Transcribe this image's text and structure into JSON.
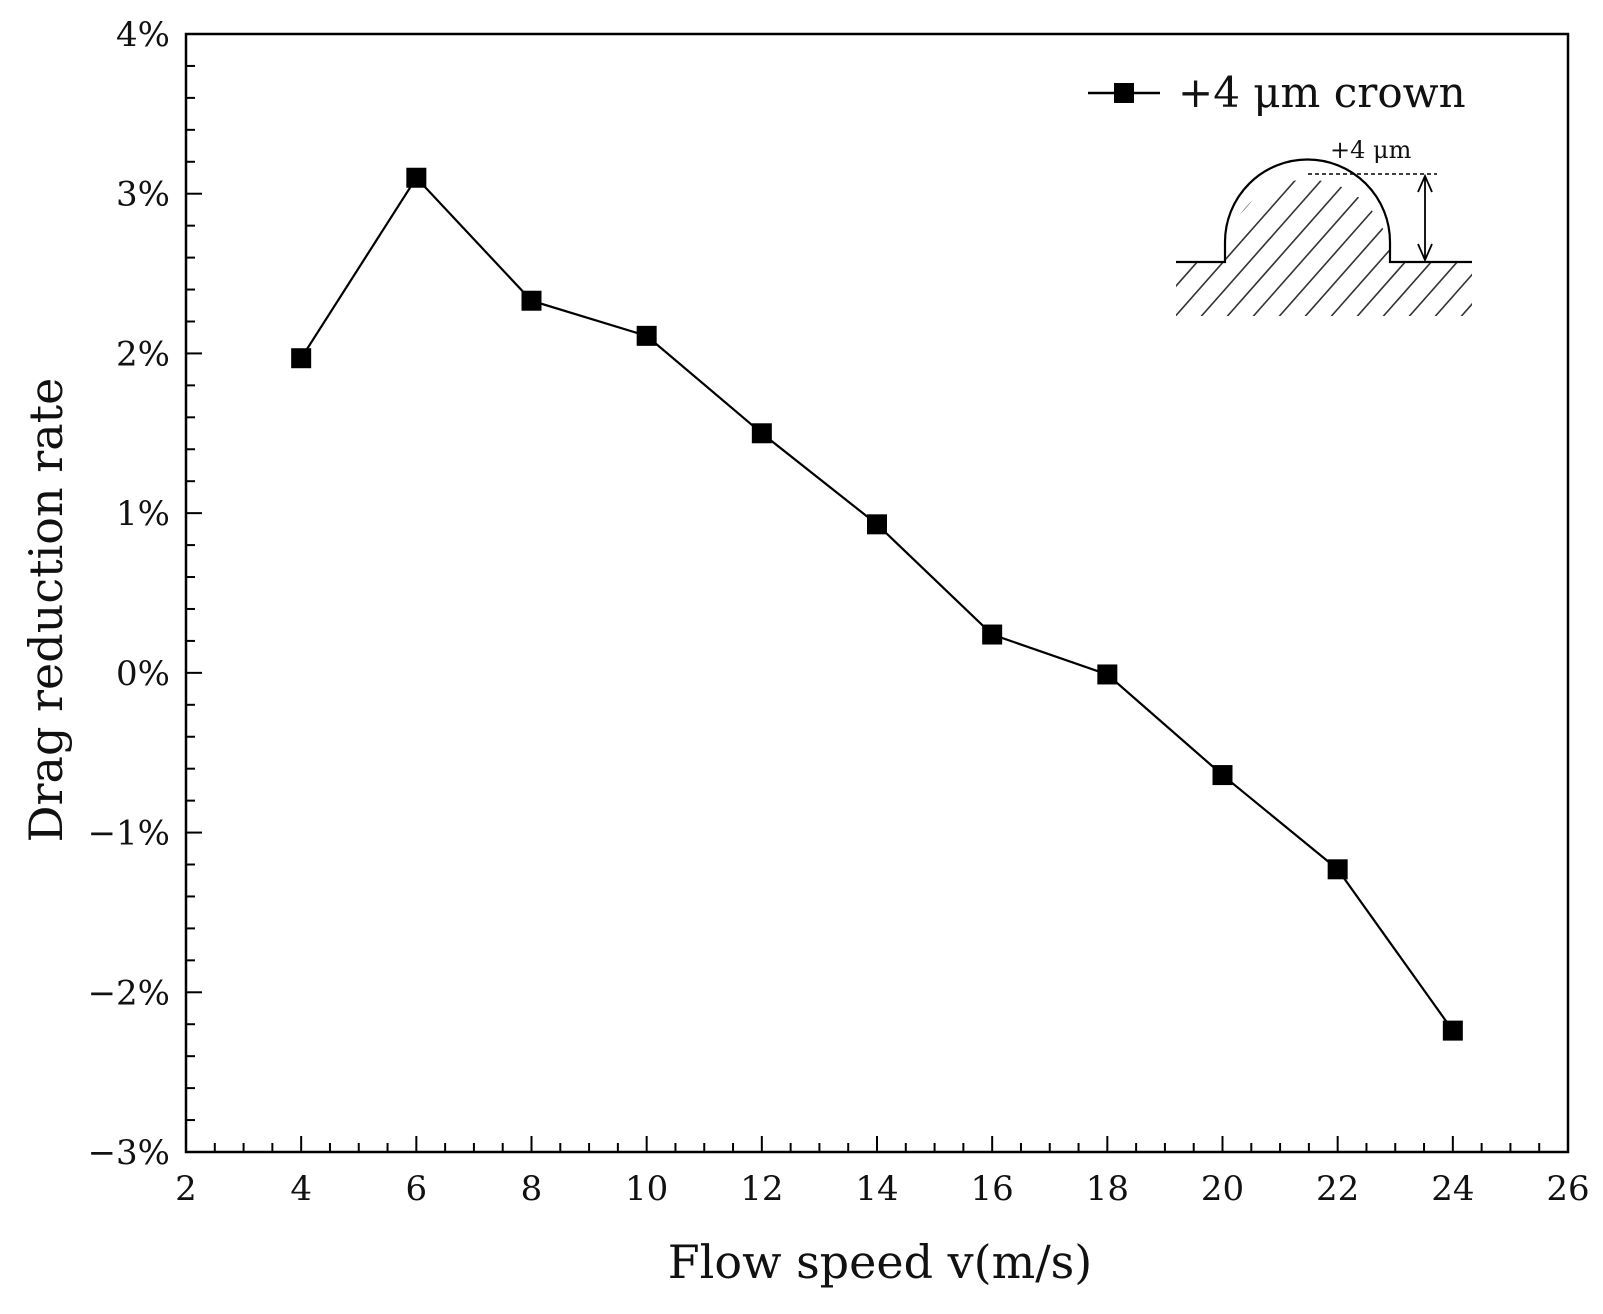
{
  "chart_data": {
    "type": "line",
    "title": "",
    "xlabel": "Flow speed v(m/s)",
    "ylabel": "Drag reduction rate",
    "xlim": [
      2,
      26
    ],
    "ylim": [
      -3,
      4
    ],
    "x_ticks": [
      2,
      4,
      6,
      8,
      10,
      12,
      14,
      16,
      18,
      20,
      22,
      24,
      26
    ],
    "x_tick_labels": [
      "2",
      "4",
      "6",
      "8",
      "10",
      "12",
      "14",
      "16",
      "18",
      "20",
      "22",
      "24",
      "26"
    ],
    "y_ticks": [
      -3,
      -2,
      -1,
      0,
      1,
      2,
      3,
      4
    ],
    "y_tick_labels": [
      "−3%",
      "−2%",
      "−1%",
      "0%",
      "1%",
      "2%",
      "3%",
      "4%"
    ],
    "grid": false,
    "legend_position": "top-right",
    "series": [
      {
        "name": "+4 μm crown",
        "marker": "square",
        "color": "#000000",
        "x": [
          4,
          6,
          8,
          10,
          12,
          14,
          16,
          18,
          20,
          22,
          24
        ],
        "values": [
          1.97,
          3.1,
          2.33,
          2.11,
          1.5,
          0.93,
          0.24,
          -0.01,
          -0.64,
          -1.23,
          -2.24
        ]
      }
    ],
    "inset": {
      "label": "+4 μm"
    }
  }
}
